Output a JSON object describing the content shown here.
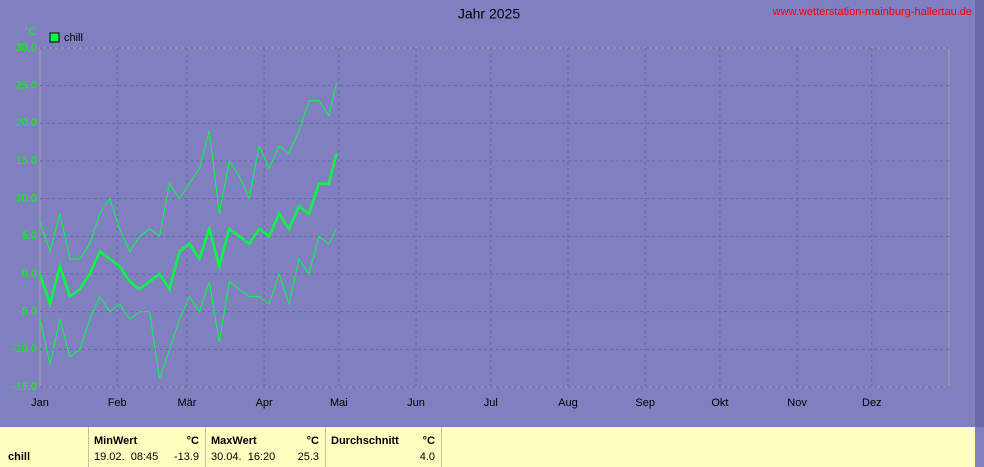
{
  "chart_data": {
    "type": "line",
    "title": "Jahr 2025",
    "source": "www.wetterstation-mainburg-hallertau.de",
    "ylabel": "°C",
    "x": [
      1,
      5,
      9,
      13,
      17,
      21,
      25,
      29,
      33,
      37,
      41,
      45,
      49,
      53,
      57,
      61,
      65,
      69,
      73,
      77,
      81,
      85,
      89,
      93,
      97,
      101,
      105,
      109,
      113,
      117,
      120
    ],
    "xlim": [
      1,
      366
    ],
    "xticks": [
      {
        "value": 1,
        "label": "Jan"
      },
      {
        "value": 32,
        "label": "Feb"
      },
      {
        "value": 60,
        "label": "Mär"
      },
      {
        "value": 91,
        "label": "Apr"
      },
      {
        "value": 121,
        "label": "Mai"
      },
      {
        "value": 152,
        "label": "Jun"
      },
      {
        "value": 182,
        "label": "Jul"
      },
      {
        "value": 213,
        "label": "Aug"
      },
      {
        "value": 244,
        "label": "Sep"
      },
      {
        "value": 274,
        "label": "Okt"
      },
      {
        "value": 305,
        "label": "Nov"
      },
      {
        "value": 335,
        "label": "Dez"
      }
    ],
    "ylim": [
      -15,
      30
    ],
    "yticks": [
      {
        "value": 30,
        "label": "30.0"
      },
      {
        "value": 25,
        "label": "25.0"
      },
      {
        "value": 20,
        "label": "20.0"
      },
      {
        "value": 15,
        "label": "15.0"
      },
      {
        "value": 10,
        "label": "10.0"
      },
      {
        "value": 5,
        "label": "5.0"
      },
      {
        "value": 0,
        "label": "0.0"
      },
      {
        "value": -5,
        "label": "-5.0"
      },
      {
        "value": -10,
        "label": "-10.0"
      },
      {
        "value": -15,
        "label": "-15.0"
      }
    ],
    "grid": true,
    "series": [
      {
        "name": "chill",
        "color": "#00ff40",
        "values": [
          0,
          -4,
          1,
          -3,
          -2,
          0,
          3,
          2,
          1,
          -1,
          -2,
          -1,
          0,
          -2,
          3,
          4,
          2,
          6,
          1,
          6,
          5,
          4,
          6,
          5,
          8,
          6,
          9,
          8,
          12,
          12,
          16
        ],
        "max": [
          7,
          3,
          8,
          2,
          2,
          4,
          8,
          10,
          6,
          3,
          5,
          6,
          5,
          12,
          10,
          12,
          14,
          19,
          8,
          15,
          13,
          10,
          17,
          14,
          17,
          16,
          19,
          23,
          23,
          21,
          25.3
        ],
        "min": [
          -6,
          -12,
          -6,
          -11,
          -10,
          -6,
          -3,
          -5,
          -4,
          -6,
          -5,
          -5,
          -13.9,
          -10,
          -6,
          -3,
          -5,
          -1,
          -9,
          -1,
          -2,
          -3,
          -3,
          -4,
          0,
          -4,
          2,
          0,
          5,
          4,
          6
        ]
      }
    ]
  },
  "table": {
    "row": "chill",
    "columns": [
      {
        "label": "MinWert",
        "unit": "°C",
        "time": "19.02.  08:45",
        "value": "-13.9"
      },
      {
        "label": "MaxWert",
        "unit": "°C",
        "time": "30.04.  16:20",
        "value": "25.3"
      },
      {
        "label": "Durchschnitt",
        "unit": "°C",
        "time": "",
        "value": "4.0"
      }
    ]
  }
}
